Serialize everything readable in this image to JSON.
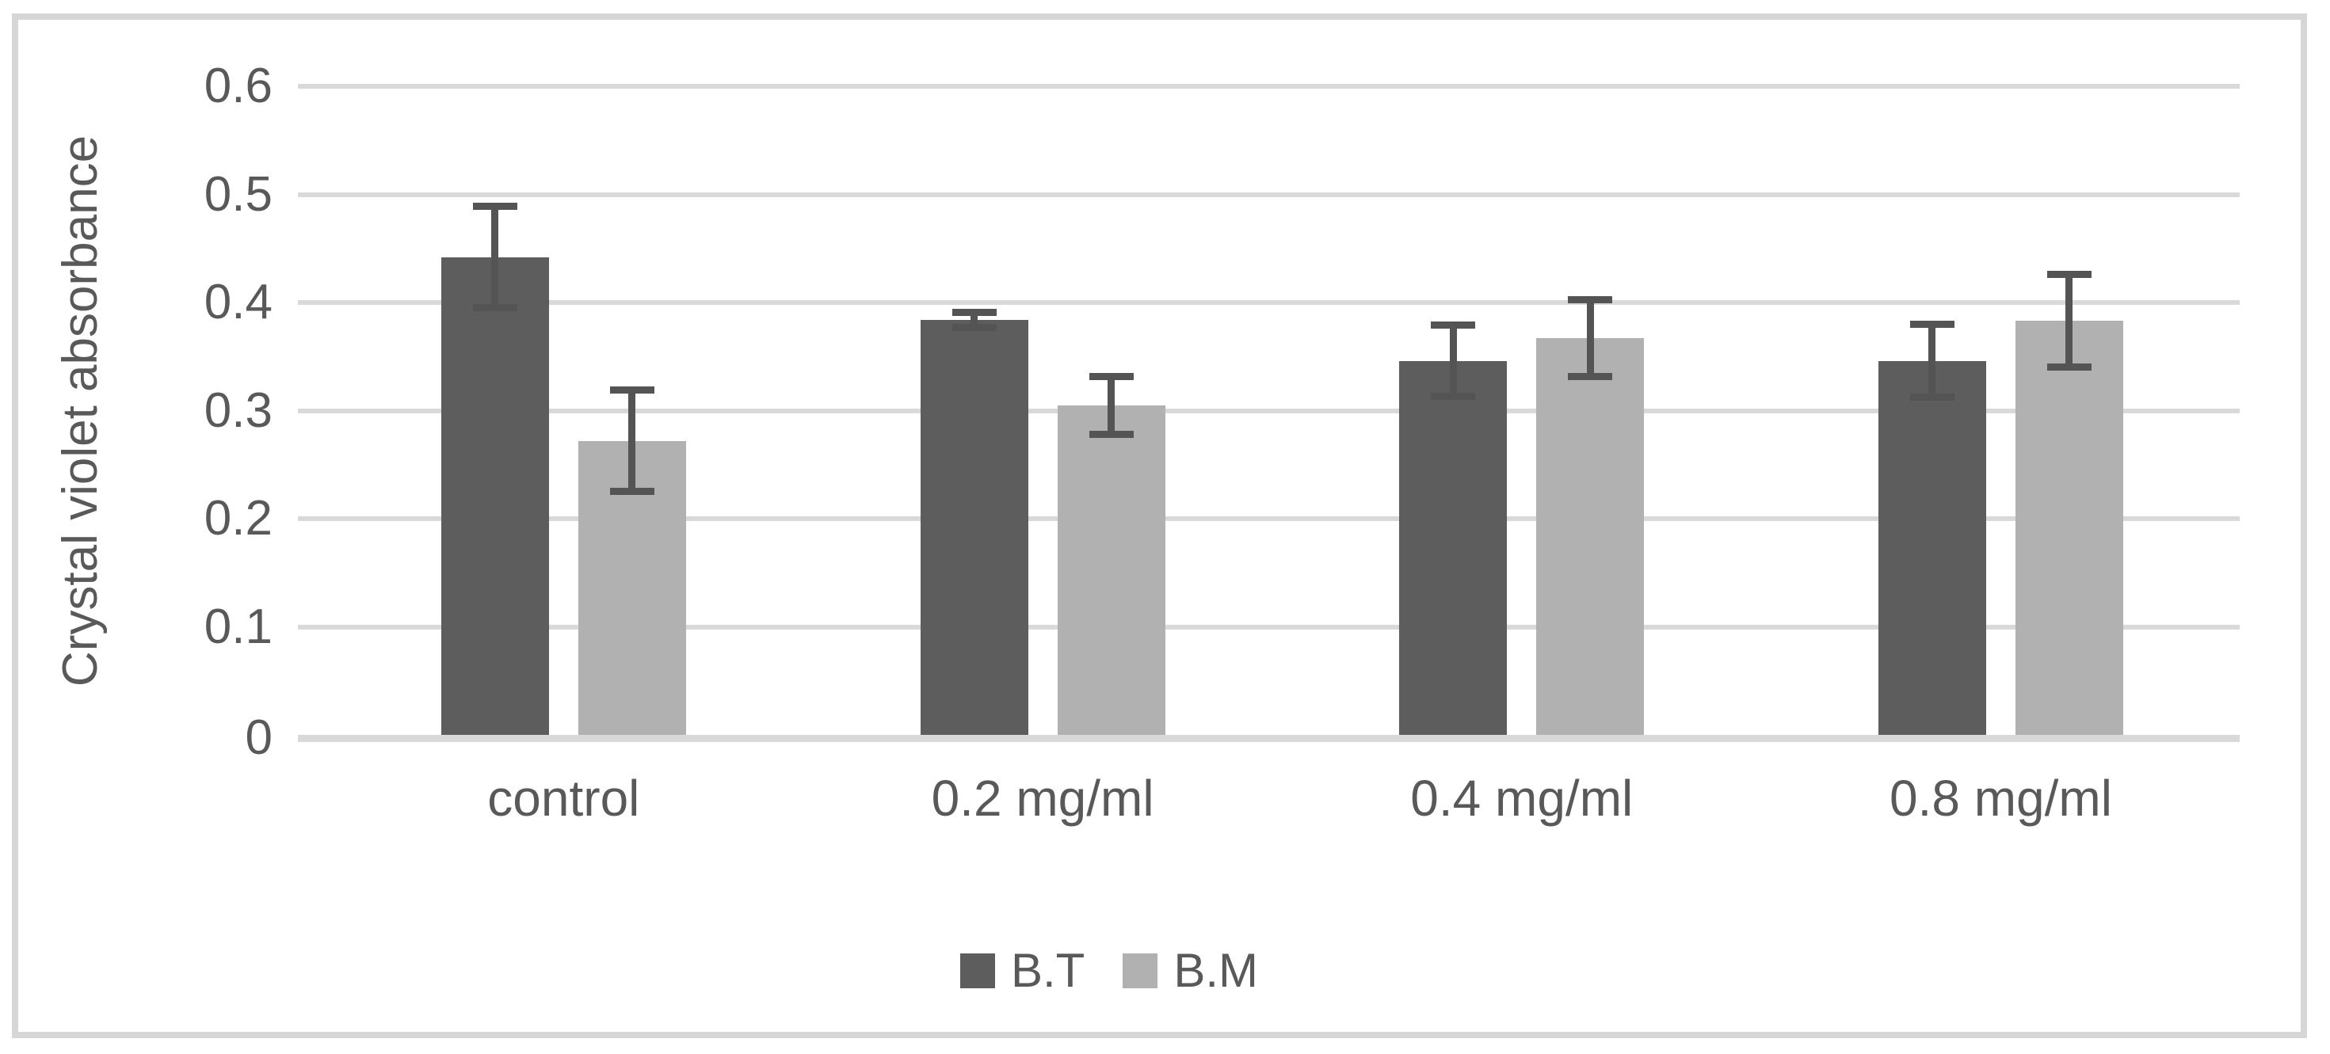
{
  "chart_data": {
    "type": "bar",
    "title": "",
    "ylabel": "Crystal violet absorbance",
    "xlabel": "",
    "categories": [
      "control",
      "0.2 mg/ml",
      "0.4 mg/ml",
      "0.8 mg/ml"
    ],
    "series": [
      {
        "name": "B.T",
        "color": "#5d5d5d",
        "values": [
          0.442,
          0.384,
          0.346,
          0.346
        ],
        "error": [
          0.045,
          0.005,
          0.031,
          0.032
        ]
      },
      {
        "name": "B.M",
        "color": "#b1b1b1",
        "values": [
          0.272,
          0.305,
          0.367,
          0.383
        ],
        "error": [
          0.045,
          0.025,
          0.034,
          0.041
        ]
      }
    ],
    "yticks": [
      "0.6",
      "0.5",
      "0.4",
      "0.3",
      "0.2",
      "0.1",
      "0"
    ],
    "ylim": [
      0,
      0.6
    ],
    "grid": true,
    "legend_position": "bottom",
    "colors": {
      "grid": "#d9d9d9",
      "axis_line": "#d9d9d9",
      "text": "#595959",
      "error_bar": "#545454",
      "frame_border": "#d6d6d6",
      "background": "#ffffff"
    }
  }
}
